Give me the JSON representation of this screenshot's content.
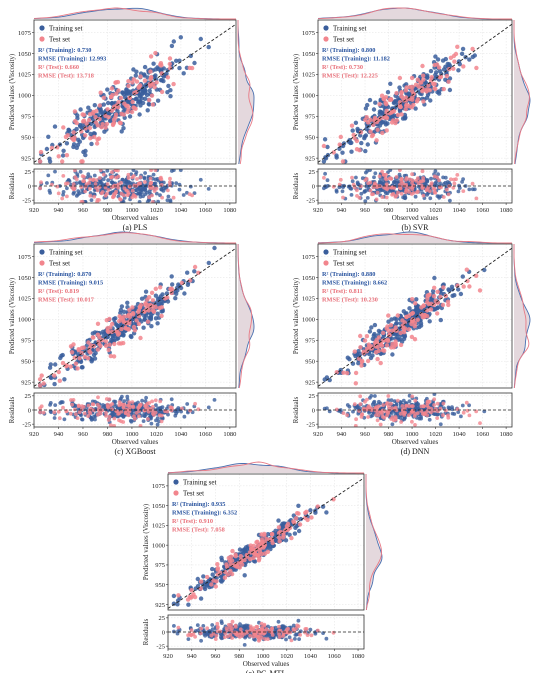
{
  "legend": {
    "train_label": "Training set",
    "test_label": "Test set"
  },
  "colors": {
    "train": "#3a5e9c",
    "test": "#f2858d",
    "kde_train": "#4a70b0",
    "kde_test": "#e87a86",
    "kde_fill": "#d9c7cf",
    "text_train": "#2b55a0",
    "text_test": "#e8707a"
  },
  "chart_data": [
    {
      "type": "scatter",
      "panel_id": "pls",
      "caption": "(a) PLS",
      "xlabel": "Observed values",
      "ylabel": "Predicted values (Viscosity)",
      "reslabel": "Residuals",
      "xlim": [
        920,
        1085
      ],
      "ylim": [
        918,
        1090
      ],
      "res_ylim": [
        -30,
        30
      ],
      "xticks": [
        920,
        940,
        960,
        980,
        1000,
        1020,
        1040,
        1060,
        1080
      ],
      "yticks": [
        925,
        950,
        975,
        1000,
        1025,
        1050,
        1075
      ],
      "res_yticks": [
        -25,
        0,
        25
      ],
      "metrics": {
        "r2_train": "R² (Training): 0.730",
        "rmse_train": "RMSE (Training): 12.993",
        "r2_test": "R² (Test): 0.660",
        "rmse_test": "RMSE (Test): 13.718"
      },
      "noise_train": 12.9,
      "noise_test": 13.7
    },
    {
      "type": "scatter",
      "panel_id": "svr",
      "caption": "(b) SVR",
      "xlabel": "Observed values",
      "ylabel": "Predicted values (Viscosity)",
      "reslabel": "Residuals",
      "xlim": [
        920,
        1085
      ],
      "ylim": [
        918,
        1090
      ],
      "res_ylim": [
        -30,
        30
      ],
      "xticks": [
        920,
        940,
        960,
        980,
        1000,
        1020,
        1040,
        1060,
        1080
      ],
      "yticks": [
        925,
        950,
        975,
        1000,
        1025,
        1050,
        1075
      ],
      "res_yticks": [
        -25,
        0,
        25
      ],
      "metrics": {
        "r2_train": "R² (Training): 0.800",
        "rmse_train": "RMSE (Training): 11.182",
        "r2_test": "R² (Test): 0.730",
        "rmse_test": "RMSE (Test): 12.225"
      },
      "noise_train": 11.2,
      "noise_test": 12.2
    },
    {
      "type": "scatter",
      "panel_id": "xgboost",
      "caption": "(c) XGBoost",
      "xlabel": "Observed values",
      "ylabel": "Predicted values (Viscosity)",
      "reslabel": "Residuals",
      "xlim": [
        920,
        1085
      ],
      "ylim": [
        918,
        1090
      ],
      "res_ylim": [
        -30,
        30
      ],
      "xticks": [
        920,
        940,
        960,
        980,
        1000,
        1020,
        1040,
        1060,
        1080
      ],
      "yticks": [
        925,
        950,
        975,
        1000,
        1025,
        1050,
        1075
      ],
      "res_yticks": [
        -25,
        0,
        25
      ],
      "metrics": {
        "r2_train": "R² (Training): 0.870",
        "rmse_train": "RMSE (Training): 9.015",
        "r2_test": "R² (Test): 0.819",
        "rmse_test": "RMSE (Test): 10.017"
      },
      "noise_train": 9.0,
      "noise_test": 10.0
    },
    {
      "type": "scatter",
      "panel_id": "dnn",
      "caption": "(d) DNN",
      "xlabel": "Observed values",
      "ylabel": "Predicted values (Viscosity)",
      "reslabel": "Residuals",
      "xlim": [
        920,
        1085
      ],
      "ylim": [
        918,
        1090
      ],
      "res_ylim": [
        -30,
        30
      ],
      "xticks": [
        920,
        940,
        960,
        980,
        1000,
        1020,
        1040,
        1060,
        1080
      ],
      "yticks": [
        925,
        950,
        975,
        1000,
        1025,
        1050,
        1075
      ],
      "res_yticks": [
        -25,
        0,
        25
      ],
      "metrics": {
        "r2_train": "R² (Training): 0.880",
        "rmse_train": "RMSE (Training): 8.662",
        "r2_test": "R² (Test): 0.811",
        "rmse_test": "RMSE (Test): 10.230"
      },
      "noise_train": 8.7,
      "noise_test": 10.2
    },
    {
      "type": "scatter",
      "panel_id": "pgmtl",
      "caption": "(e) PG-MTL",
      "xlabel": "Observed values",
      "ylabel": "Predicted values (Viscosity)",
      "reslabel": "Residuals",
      "xlim": [
        920,
        1085
      ],
      "ylim": [
        918,
        1090
      ],
      "res_ylim": [
        -30,
        30
      ],
      "xticks": [
        920,
        940,
        960,
        980,
        1000,
        1020,
        1040,
        1060,
        1080
      ],
      "yticks": [
        925,
        950,
        975,
        1000,
        1025,
        1050,
        1075
      ],
      "res_yticks": [
        -25,
        0,
        25
      ],
      "metrics": {
        "r2_train": "R² (Training): 0.935",
        "rmse_train": "RMSE (Training): 6.352",
        "r2_test": "R² (Test): 0.910",
        "rmse_test": "RMSE (Test): 7.058"
      },
      "noise_train": 6.4,
      "noise_test": 7.1
    }
  ]
}
